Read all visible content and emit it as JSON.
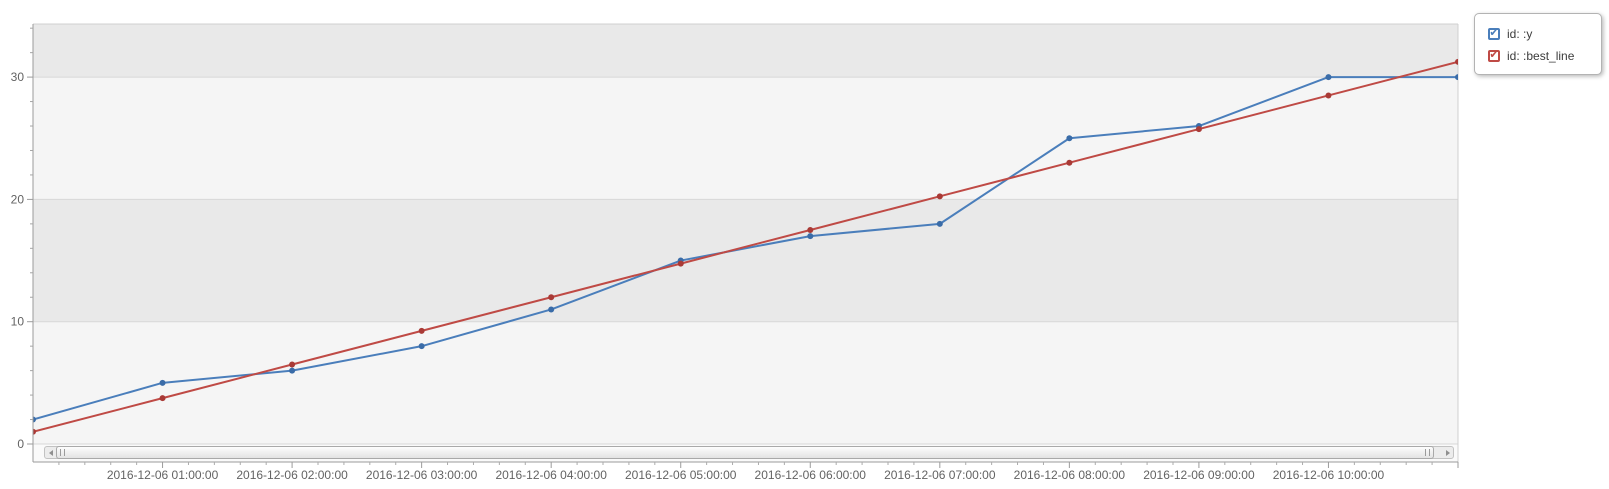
{
  "legend": {
    "position": "top-right",
    "items": [
      {
        "id": "y",
        "label": "id: :y",
        "color": "#4a7ebb",
        "checked": true
      },
      {
        "id": "best_line",
        "label": "id: :best_line",
        "color": "#bf4a45",
        "checked": true
      }
    ]
  },
  "scrollbar": {
    "orientation": "horizontal",
    "thumb_coverage": "nearly full range"
  },
  "chart_data": {
    "type": "line",
    "title": "",
    "xlabel": "",
    "ylabel": "",
    "x": [
      "2016-12-06 00:00:00",
      "2016-12-06 01:00:00",
      "2016-12-06 02:00:00",
      "2016-12-06 03:00:00",
      "2016-12-06 04:00:00",
      "2016-12-06 05:00:00",
      "2016-12-06 06:00:00",
      "2016-12-06 07:00:00",
      "2016-12-06 08:00:00",
      "2016-12-06 09:00:00",
      "2016-12-06 10:00:00",
      "2016-12-06 11:00:00"
    ],
    "x_hours": [
      0,
      1,
      2,
      3,
      4,
      5,
      6,
      7,
      8,
      9,
      10,
      11
    ],
    "x_axis_tick_labels": [
      "2016-12-06 01:00:00",
      "2016-12-06 02:00:00",
      "2016-12-06 03:00:00",
      "2016-12-06 04:00:00",
      "2016-12-06 05:00:00",
      "2016-12-06 06:00:00",
      "2016-12-06 07:00:00",
      "2016-12-06 08:00:00",
      "2016-12-06 09:00:00",
      "2016-12-06 10:00:00"
    ],
    "x_axis_tick_label_hours": [
      1,
      2,
      3,
      4,
      5,
      6,
      7,
      8,
      9,
      10
    ],
    "series": [
      {
        "name": "id: :y",
        "color": "#4a7ebb",
        "marker_color": "#3a6ca8",
        "values": [
          2,
          5,
          6,
          8,
          11,
          15,
          17,
          18,
          25,
          26,
          30,
          30
        ]
      },
      {
        "name": "id: :best_line",
        "color": "#bf4a45",
        "marker_color": "#a93a36",
        "values": [
          1,
          3.75,
          6.5,
          9.25,
          12,
          14.75,
          17.5,
          20.25,
          23,
          25.75,
          28.5,
          31.25
        ]
      }
    ],
    "y_ticks": [
      0,
      10,
      20,
      30
    ],
    "y_minor_step": 2,
    "x_minor_step_hours": 0.2,
    "ylim": [
      -1.5,
      34.3
    ],
    "xlim_hours": [
      0,
      11
    ],
    "grid": "horizontal gridlines with alternating row bands",
    "legend_position": "top-right outside plot",
    "markers": true
  }
}
